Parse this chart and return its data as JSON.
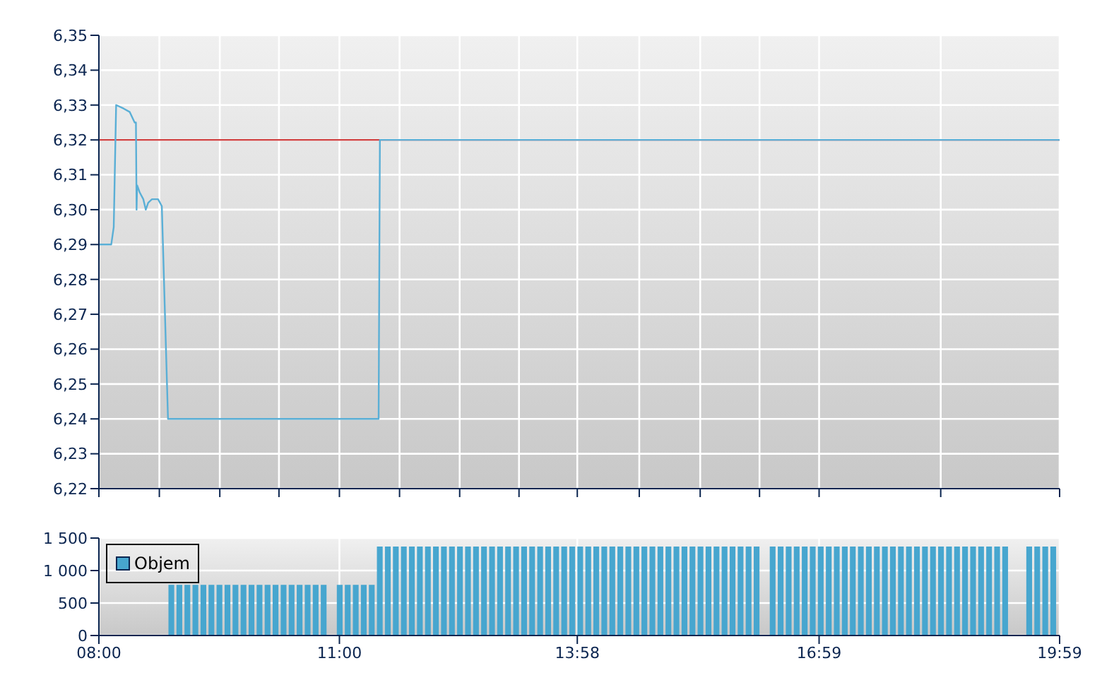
{
  "chart_data": [
    {
      "type": "line",
      "x": [
        8.0,
        8.154,
        8.185,
        8.215,
        8.308,
        8.385,
        8.446,
        8.462,
        8.47,
        8.477,
        8.508,
        8.554,
        8.585,
        8.615,
        8.662,
        8.738,
        8.785,
        8.862,
        11.489,
        11.505,
        19.983
      ],
      "series": [
        {
          "color": "#5aafd6",
          "values": [
            6.29,
            6.29,
            6.295,
            6.33,
            6.329,
            6.328,
            6.325,
            6.325,
            6.3,
            6.307,
            6.305,
            6.303,
            6.3,
            6.302,
            6.303,
            6.303,
            6.301,
            6.24,
            6.24,
            6.32,
            6.32
          ]
        }
      ],
      "xlim": [
        8,
        19.983
      ],
      "xticks": [
        {
          "value": 8,
          "label": null
        },
        {
          "value": 8.754,
          "label": null
        },
        {
          "value": 9.508,
          "label": null
        },
        {
          "value": 10.246,
          "label": null
        },
        {
          "value": 11,
          "label": null
        },
        {
          "value": 11.75,
          "label": null
        },
        {
          "value": 12.5,
          "label": null
        },
        {
          "value": 13.24,
          "label": null
        },
        {
          "value": 13.967,
          "label": null
        },
        {
          "value": 14.74,
          "label": null
        },
        {
          "value": 15.5,
          "label": null
        },
        {
          "value": 16.24,
          "label": null
        },
        {
          "value": 16.983,
          "label": null
        },
        {
          "value": 18.5,
          "label": null
        },
        {
          "value": 19.983,
          "label": null
        }
      ],
      "ylim": [
        6.22,
        6.35
      ],
      "yticks": [
        {
          "value": 6.22,
          "label": "6,22"
        },
        {
          "value": 6.23,
          "label": "6,23"
        },
        {
          "value": 6.24,
          "label": "6,24"
        },
        {
          "value": 6.25,
          "label": "6,25"
        },
        {
          "value": 6.26,
          "label": "6,26"
        },
        {
          "value": 6.27,
          "label": "6,27"
        },
        {
          "value": 6.28,
          "label": "6,28"
        },
        {
          "value": 6.29,
          "label": "6,29"
        },
        {
          "value": 6.3,
          "label": "6,30"
        },
        {
          "value": 6.31,
          "label": "6,31"
        },
        {
          "value": 6.32,
          "label": "6,32"
        },
        {
          "value": 6.33,
          "label": "6,33"
        },
        {
          "value": 6.34,
          "label": "6,34"
        },
        {
          "value": 6.35,
          "label": "6,35"
        }
      ],
      "ref_lines": [
        {
          "axis": "y",
          "value": 6.32,
          "color": "#d04040"
        }
      ],
      "grid": true,
      "tick_labels": "y",
      "marker": "none",
      "line_style": "solid"
    },
    {
      "type": "bar",
      "x": [
        8.9,
        9.0,
        9.1,
        9.2,
        9.3,
        9.4,
        9.5,
        9.6,
        9.7,
        9.8,
        9.9,
        10.0,
        10.1,
        10.2,
        10.3,
        10.4,
        10.5,
        10.6,
        10.7,
        10.8,
        10.9,
        11.0,
        11.1,
        11.2,
        11.3,
        11.4,
        11.5,
        11.6,
        11.7,
        11.8,
        11.9,
        12.0,
        12.1,
        12.2,
        12.3,
        12.4,
        12.5,
        12.6,
        12.7,
        12.8,
        12.9,
        13.0,
        13.1,
        13.2,
        13.3,
        13.4,
        13.5,
        13.6,
        13.7,
        13.8,
        13.9,
        14.0,
        14.1,
        14.2,
        14.3,
        14.4,
        14.5,
        14.6,
        14.7,
        14.8,
        14.9,
        15.0,
        15.1,
        15.2,
        15.3,
        15.4,
        15.5,
        15.6,
        15.7,
        15.8,
        15.9,
        16.0,
        16.1,
        16.2,
        16.3,
        16.4,
        16.5,
        16.6,
        16.7,
        16.8,
        16.9,
        17.0,
        17.1,
        17.2,
        17.3,
        17.4,
        17.5,
        17.6,
        17.7,
        17.8,
        17.9,
        18.0,
        18.1,
        18.2,
        18.3,
        18.4,
        18.5,
        18.6,
        18.7,
        18.8,
        18.9,
        19.0,
        19.1,
        19.2,
        19.3,
        19.4,
        19.5,
        19.6,
        19.7,
        19.8,
        19.9
      ],
      "series": [
        {
          "name": "Objem",
          "color": "#47a6cf",
          "values": [
            780,
            780,
            780,
            780,
            780,
            780,
            780,
            780,
            780,
            780,
            780,
            780,
            780,
            780,
            780,
            780,
            780,
            780,
            780,
            780,
            null,
            780,
            780,
            780,
            780,
            780,
            1370,
            1370,
            1370,
            1370,
            1370,
            1370,
            1370,
            1370,
            1370,
            1370,
            1370,
            1370,
            1370,
            1370,
            1370,
            1370,
            1370,
            1370,
            1370,
            1370,
            1370,
            1370,
            1370,
            1370,
            1370,
            1370,
            1370,
            1370,
            1370,
            1370,
            1370,
            1370,
            1370,
            1370,
            1370,
            1370,
            1370,
            1370,
            1370,
            1370,
            1370,
            1370,
            1370,
            1370,
            1370,
            1370,
            1370,
            1370,
            null,
            1370,
            1370,
            1370,
            1370,
            1370,
            1370,
            1370,
            1370,
            1370,
            1370,
            1370,
            1370,
            1370,
            1370,
            1370,
            1370,
            1370,
            1370,
            1370,
            1370,
            1370,
            1370,
            1370,
            1370,
            1370,
            1370,
            1370,
            1370,
            1370,
            1370,
            null,
            null,
            1370,
            1370,
            1370,
            1370
          ]
        }
      ],
      "xlim": [
        8,
        19.983
      ],
      "xticks": [
        {
          "value": 8,
          "label": "08:00"
        },
        {
          "value": 11,
          "label": "11:00"
        },
        {
          "value": 13.967,
          "label": "13:58"
        },
        {
          "value": 16.983,
          "label": "16:59"
        },
        {
          "value": 19.983,
          "label": "19:59"
        }
      ],
      "ylim": [
        0,
        1500
      ],
      "yticks": [
        0,
        500,
        {
          "value": 1000,
          "label": "1 000"
        },
        {
          "value": 1500,
          "label": "1 500"
        }
      ],
      "grid": true,
      "legend": "left"
    }
  ]
}
